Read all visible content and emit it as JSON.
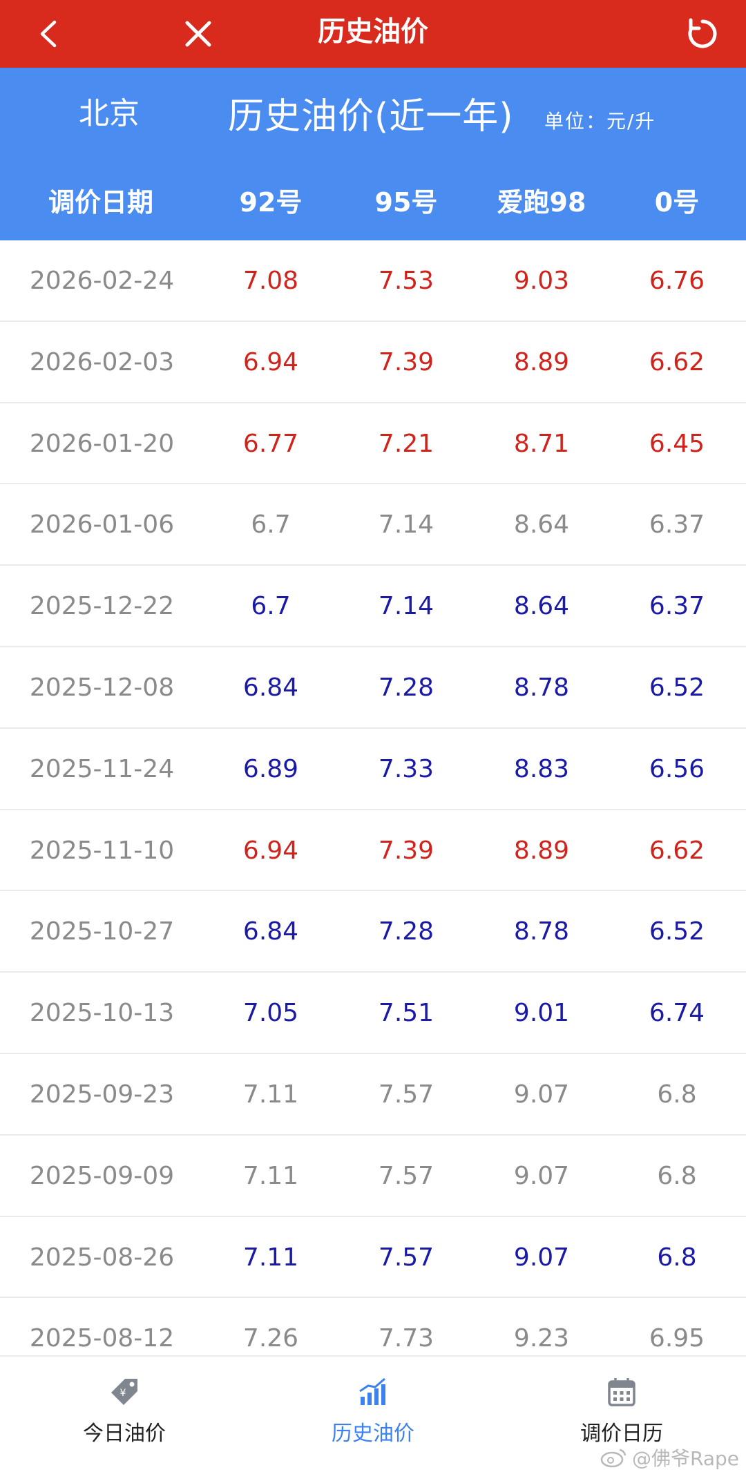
{
  "topbar": {
    "title": "历史油价",
    "back_icon": "chevron-left-icon",
    "close_icon": "close-icon",
    "refresh_icon": "refresh-icon",
    "bg_color": "#d92a1e"
  },
  "header": {
    "city": "北京",
    "title": "历史油价(近一年)",
    "unit": "单位：元/升",
    "bg_color": "#4b8cf0",
    "columns": [
      "调价日期",
      "92号",
      "95号",
      "爱跑98",
      "0号"
    ]
  },
  "colors": {
    "up": "#d0231b",
    "down": "#1a1aa6",
    "same": "#8a8a8a"
  },
  "rows": [
    {
      "date": "2026-02-24",
      "trend": "up",
      "p92": "7.08",
      "p95": "7.53",
      "p98": "9.03",
      "p0": "6.76"
    },
    {
      "date": "2026-02-03",
      "trend": "up",
      "p92": "6.94",
      "p95": "7.39",
      "p98": "8.89",
      "p0": "6.62"
    },
    {
      "date": "2026-01-20",
      "trend": "up",
      "p92": "6.77",
      "p95": "7.21",
      "p98": "8.71",
      "p0": "6.45"
    },
    {
      "date": "2026-01-06",
      "trend": "same",
      "p92": "6.7",
      "p95": "7.14",
      "p98": "8.64",
      "p0": "6.37"
    },
    {
      "date": "2025-12-22",
      "trend": "down",
      "p92": "6.7",
      "p95": "7.14",
      "p98": "8.64",
      "p0": "6.37"
    },
    {
      "date": "2025-12-08",
      "trend": "down",
      "p92": "6.84",
      "p95": "7.28",
      "p98": "8.78",
      "p0": "6.52"
    },
    {
      "date": "2025-11-24",
      "trend": "down",
      "p92": "6.89",
      "p95": "7.33",
      "p98": "8.83",
      "p0": "6.56"
    },
    {
      "date": "2025-11-10",
      "trend": "up",
      "p92": "6.94",
      "p95": "7.39",
      "p98": "8.89",
      "p0": "6.62"
    },
    {
      "date": "2025-10-27",
      "trend": "down",
      "p92": "6.84",
      "p95": "7.28",
      "p98": "8.78",
      "p0": "6.52"
    },
    {
      "date": "2025-10-13",
      "trend": "down",
      "p92": "7.05",
      "p95": "7.51",
      "p98": "9.01",
      "p0": "6.74"
    },
    {
      "date": "2025-09-23",
      "trend": "same",
      "p92": "7.11",
      "p95": "7.57",
      "p98": "9.07",
      "p0": "6.8"
    },
    {
      "date": "2025-09-09",
      "trend": "same",
      "p92": "7.11",
      "p95": "7.57",
      "p98": "9.07",
      "p0": "6.8"
    },
    {
      "date": "2025-08-26",
      "trend": "down",
      "p92": "7.11",
      "p95": "7.57",
      "p98": "9.07",
      "p0": "6.8"
    },
    {
      "date": "2025-08-12",
      "trend": "same",
      "p92": "7.26",
      "p95": "7.73",
      "p98": "9.23",
      "p0": "6.95"
    }
  ],
  "bottomnav": [
    {
      "label": "今日油价",
      "icon": "price-tag-icon",
      "active": false
    },
    {
      "label": "历史油价",
      "icon": "bar-chart-icon",
      "active": true
    },
    {
      "label": "调价日历",
      "icon": "calendar-icon",
      "active": false
    }
  ],
  "watermark": "@佛爷Rape"
}
